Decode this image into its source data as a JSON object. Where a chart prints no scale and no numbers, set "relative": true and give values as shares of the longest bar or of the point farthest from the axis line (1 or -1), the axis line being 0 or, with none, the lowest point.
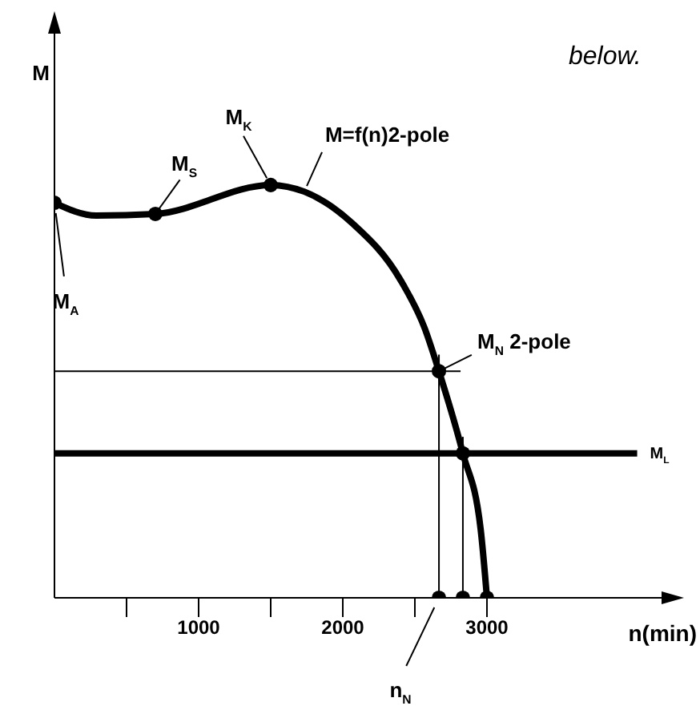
{
  "chart_data": {
    "type": "line",
    "relative": true,
    "xlabel": "n(min)",
    "ylabel": "M",
    "xlim": [
      0,
      4300
    ],
    "xticks": [
      {
        "value": 500,
        "label": null
      },
      1000,
      {
        "value": 1500,
        "label": null
      },
      2000,
      {
        "value": 2500,
        "label": null
      },
      3000
    ],
    "tick_labels": "x",
    "series": [
      {
        "type": "line",
        "marker": "none",
        "color": "#000000",
        "x": [
          0,
          289,
          700,
          1500,
          1733,
          2067,
          2400,
          2567,
          2667,
          2833,
          2956,
          3000
        ],
        "values": [
          0.957,
          0.926,
          0.93,
          1,
          0.984,
          0.907,
          0.77,
          0.654,
          0.549,
          0.35,
          0.167,
          0
        ]
      },
      {
        "type": "scatter",
        "marker": "circle",
        "color": "#000000",
        "x": [
          0,
          700,
          1500,
          2667,
          2833,
          3000,
          2667,
          2833
        ],
        "values": [
          0.957,
          0.93,
          1,
          0.549,
          0.35,
          0,
          0,
          0
        ]
      }
    ],
    "ref_lines": [
      {
        "axis": "y",
        "value": 0.549,
        "color": "#000000"
      },
      {
        "axis": "y",
        "value": 0.35,
        "label": "M$_{L}$",
        "color": "#000000"
      },
      {
        "axis": "x",
        "value": 2667,
        "color": "#000000"
      },
      {
        "axis": "x",
        "value": 2833,
        "color": "#000000"
      }
    ],
    "annotations": [
      {
        "text": "M$_{A}$",
        "x": 0,
        "y": 0.957
      },
      {
        "text": "M$_{S}$",
        "x": 700,
        "y": 0.93
      },
      {
        "text": "M$_{K}$",
        "x": 1500,
        "y": 1
      },
      {
        "text": "M=f(n)2-pole",
        "x": 1733,
        "y": 0.984
      },
      {
        "text": "M$_{N}$ 2-pole",
        "x": 2667,
        "y": 0.549
      },
      {
        "text": "n$_{N}$",
        "x": 2667,
        "y": 0
      },
      "below."
    ]
  }
}
